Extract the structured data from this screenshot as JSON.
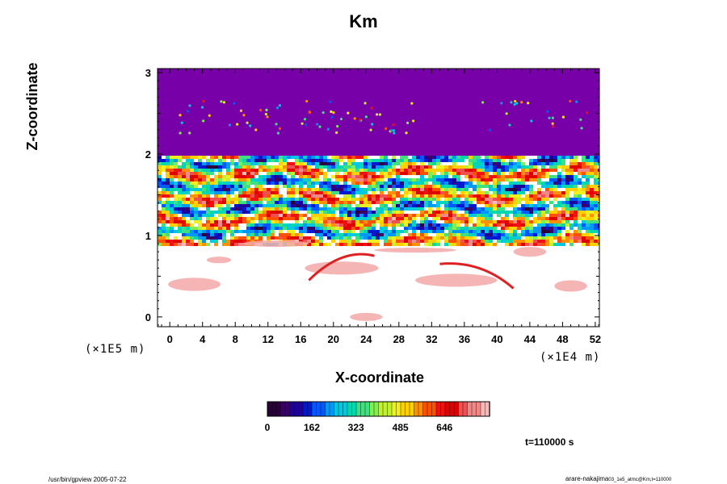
{
  "chart_data": {
    "type": "heatmap",
    "title": "Km",
    "xlabel": "X-coordinate",
    "ylabel": "Z-coordinate",
    "x_scale_note": "(×1E4 m)",
    "y_scale_note": "(×1E5 m)",
    "xlim": [
      -1.5,
      52.5
    ],
    "ylim": [
      -0.12,
      3.05
    ],
    "x_ticks": [
      "0",
      "4",
      "8",
      "12",
      "16",
      "20",
      "24",
      "28",
      "32",
      "36",
      "40",
      "44",
      "48",
      "52"
    ],
    "y_ticks": [
      "0",
      "1",
      "2",
      "3"
    ],
    "colorbar": {
      "ticks": [
        "0",
        "162",
        "323",
        "485",
        "646"
      ],
      "min": 0,
      "max": 810,
      "colors": [
        "#2a0038",
        "#3a0068",
        "#20009a",
        "#0018d0",
        "#0058ff",
        "#0098f8",
        "#00c8e0",
        "#00d8b0",
        "#40e080",
        "#80f050",
        "#c0f030",
        "#f0f020",
        "#ffd000",
        "#ff9000",
        "#ff5000",
        "#f01010",
        "#e00000",
        "#f05050",
        "#f08888",
        "#f8b8b8"
      ]
    },
    "top_fill_color": "#7800a8"
  },
  "time_label": "t=110000 s",
  "footer_left": "/usr/bin/gpview 2005-07-22",
  "footer_right_main": "arare-nakajima",
  "footer_right_sub": "03_1e5_atmc@Km,t=110000"
}
